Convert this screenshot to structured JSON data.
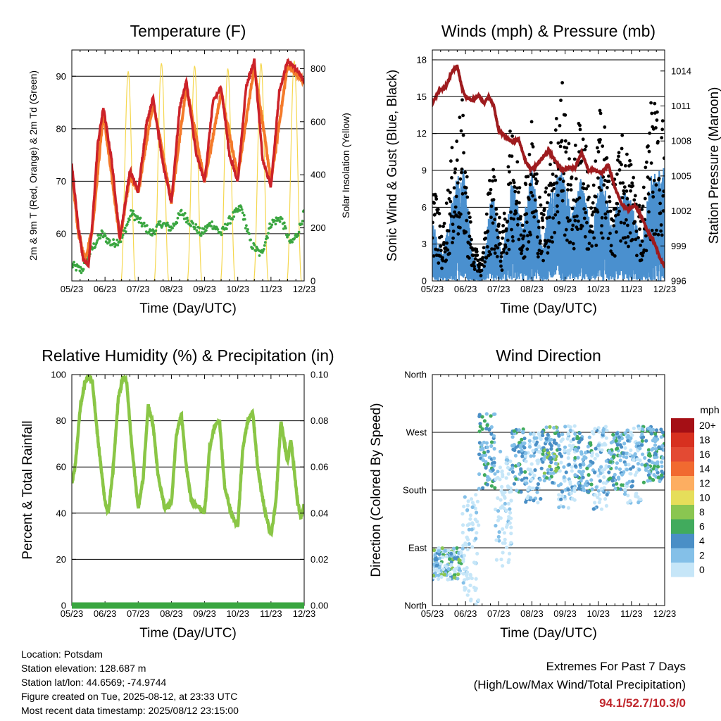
{
  "x_tick_labels": [
    "05/23",
    "06/23",
    "07/23",
    "08/23",
    "09/23",
    "10/23",
    "11/23",
    "12/23"
  ],
  "charts": {
    "temperature": {
      "title": "Temperature (F)",
      "xlabel": "Time (Day/UTC)",
      "ylabel_left": "2m & 9m T (Red, Orange) & 2m Td (Green)",
      "ylabel_right": "Solar Insolation (Yellow)",
      "y_ticks_left": [
        "60",
        "70",
        "80",
        "90"
      ],
      "y_ticks_right": [
        "0",
        "200",
        "400",
        "600",
        "800"
      ]
    },
    "winds": {
      "title": "Winds (mph) & Pressure (mb)",
      "xlabel": "Time (Day/UTC)",
      "ylabel_left": "Sonic Wind & Gust (Blue, Black)",
      "ylabel_right": "Station Pressure (Maroon)",
      "y_ticks_left": [
        "0",
        "3",
        "6",
        "9",
        "12",
        "15",
        "18"
      ],
      "y_ticks_right": [
        "996",
        "999",
        "1002",
        "1005",
        "1008",
        "1011",
        "1014"
      ]
    },
    "humidity": {
      "title": "Relative Humidity (%) & Precipitation (in)",
      "xlabel": "Time (Day/UTC)",
      "ylabel_left": "Percent & Total Rainfall",
      "y_ticks_left": [
        "0",
        "20",
        "40",
        "60",
        "80",
        "100"
      ],
      "y_ticks_right": [
        "0.00",
        "0.02",
        "0.04",
        "0.06",
        "0.08",
        "0.10"
      ]
    },
    "direction": {
      "title": "Wind Direction",
      "xlabel": "Time (Day/UTC)",
      "ylabel_left": "Direction (Colored By Speed)",
      "y_ticks_left": [
        "North",
        "East",
        "South",
        "West",
        "North"
      ],
      "legend_title": "mph",
      "legend_labels": [
        "20+",
        "18",
        "16",
        "14",
        "12",
        "10",
        "8",
        "6",
        "4",
        "2",
        "0"
      ],
      "legend_colors": [
        "#a50f15",
        "#d7301f",
        "#e34a33",
        "#f16a30",
        "#fdae61",
        "#e6de5a",
        "#8ac651",
        "#41ab5d",
        "#4a8fc6",
        "#84c0e8",
        "#c6e6f8"
      ]
    }
  },
  "chart_data": [
    {
      "type": "line",
      "title": "Temperature (F)",
      "xlabel": "Time (Day/UTC)",
      "ylabel": "2m & 9m T (Red, Orange) & 2m Td (Green)",
      "categories": [
        "05/23",
        "06/23",
        "07/23",
        "08/23",
        "09/23",
        "10/23",
        "11/23",
        "12/23"
      ],
      "ylim": [
        51,
        95
      ],
      "y2lim": [
        0,
        870
      ],
      "series": [
        {
          "name": "2m T",
          "color": "#cc2229",
          "x": [
            0,
            0.05,
            0.2,
            0.35,
            0.5,
            0.62,
            0.78,
            0.95,
            1.2,
            1.45,
            1.75,
            2.0,
            2.25,
            2.45,
            2.75,
            3.0,
            3.25,
            3.45,
            3.75,
            4.0,
            4.25,
            4.5,
            4.75,
            5.0,
            5.25,
            5.5,
            5.75,
            6.0,
            6.25,
            6.5,
            6.8,
            7.0
          ],
          "y": [
            73,
            70,
            61,
            55,
            54,
            62,
            77,
            84,
            74,
            59,
            72,
            68,
            81,
            86,
            73,
            66,
            84,
            89,
            75,
            70,
            85,
            88,
            75,
            70,
            88,
            93,
            74,
            69,
            87,
            93,
            91,
            89
          ]
        },
        {
          "name": "9m T",
          "color": "#f47a2a",
          "x": [
            0,
            0.2,
            0.4,
            0.62,
            0.95,
            1.45,
            1.75,
            2.0,
            2.45,
            3.0,
            3.45,
            4.0,
            4.5,
            5.0,
            5.5,
            6.0,
            6.5,
            7.0
          ],
          "y": [
            72,
            60,
            55,
            61,
            83,
            59,
            71,
            68,
            85,
            66,
            88,
            70,
            87,
            71,
            92,
            70,
            92,
            89
          ]
        },
        {
          "name": "2m Td",
          "color": "#3aa640",
          "x": [
            0,
            0.3,
            0.6,
            0.9,
            1.2,
            1.5,
            1.8,
            2.1,
            2.4,
            2.7,
            3.0,
            3.3,
            3.6,
            3.9,
            4.2,
            4.5,
            4.8,
            5.1,
            5.4,
            5.7,
            6.0,
            6.3,
            6.6,
            6.8,
            7.0
          ],
          "y": [
            54,
            53,
            57,
            60,
            58,
            59,
            64,
            62,
            60,
            62,
            61,
            64,
            62,
            60,
            62,
            60,
            63,
            65,
            58,
            56,
            62,
            63,
            58,
            60,
            64
          ]
        },
        {
          "name": "Solar Insolation",
          "color": "#f4d33c",
          "peaks_x": [
            1.7,
            2.7,
            3.7,
            4.7,
            5.7,
            6.7
          ],
          "peaks_y": [
            790,
            820,
            810,
            800,
            820,
            830
          ]
        }
      ]
    },
    {
      "type": "line",
      "title": "Winds (mph) & Pressure (mb)",
      "xlabel": "Time (Day/UTC)",
      "ylabel": "Sonic Wind & Gust (Blue, Black)",
      "categories": [
        "05/23",
        "06/23",
        "07/23",
        "08/23",
        "09/23",
        "10/23",
        "11/23",
        "12/23"
      ],
      "ylim": [
        0,
        18.8
      ],
      "y2lim": [
        996,
        1015.8
      ],
      "series": [
        {
          "name": "Station Pressure",
          "color": "#9e1b1e",
          "x": [
            0,
            0.2,
            0.4,
            0.6,
            0.75,
            0.9,
            1.0,
            1.2,
            1.4,
            1.55,
            1.7,
            1.85,
            2.0,
            2.2,
            2.4,
            2.6,
            2.8,
            2.95,
            3.1,
            3.3,
            3.5,
            3.7,
            3.9,
            4.1,
            4.3,
            4.5,
            4.7,
            4.9,
            5.1,
            5.3,
            5.5,
            5.7,
            5.9,
            6.1,
            6.3,
            6.5,
            6.7,
            6.85,
            7.0
          ],
          "y": [
            1011.2,
            1012.3,
            1012.6,
            1014,
            1014.4,
            1012.5,
            1011.8,
            1011.5,
            1011.9,
            1011.2,
            1011.8,
            1011,
            1008.9,
            1008.4,
            1007.9,
            1008.2,
            1006.3,
            1005.6,
            1005.8,
            1006.5,
            1007.2,
            1006.3,
            1005.5,
            1005.7,
            1005.7,
            1007,
            1005.5,
            1005.5,
            1005.2,
            1006,
            1004,
            1002.6,
            1002.1,
            1002.5,
            1001.5,
            1000.2,
            999.2,
            998,
            997.2
          ]
        },
        {
          "name": "Sonic Wind",
          "color": "#4a90cf",
          "peaks_x": [
            0,
            0.3,
            0.6,
            0.9,
            1.2,
            1.5,
            1.8,
            2.1,
            2.4,
            2.7,
            3.0,
            3.3,
            3.6,
            3.9,
            4.2,
            4.5,
            4.8,
            5.1,
            5.4,
            5.7,
            6.0,
            6.3,
            6.6,
            6.9
          ],
          "peaks_y": [
            4.5,
            2,
            6,
            10,
            2,
            0.5,
            7,
            1.5,
            8,
            4,
            8.5,
            3,
            7,
            8.5,
            5,
            8,
            3.5,
            8.5,
            4,
            7,
            6,
            3,
            8,
            8.5
          ]
        },
        {
          "name": "Gust",
          "color": "#000000",
          "peaks_x": [
            0,
            0.3,
            0.6,
            0.9,
            1.2,
            1.5,
            1.8,
            2.1,
            2.4,
            2.7,
            3.0,
            3.3,
            3.6,
            3.9,
            4.2,
            4.5,
            4.8,
            5.1,
            5.4,
            5.7,
            6.0,
            6.3,
            6.6,
            6.9
          ],
          "peaks_y": [
            8.5,
            3.5,
            10,
            13.5,
            3,
            1.5,
            10,
            3,
            13,
            6,
            12.5,
            5,
            11,
            16,
            8,
            14,
            5.5,
            14.5,
            6.5,
            11,
            9,
            5.5,
            14,
            12.5
          ]
        }
      ]
    },
    {
      "type": "line",
      "title": "Relative Humidity (%) & Precipitation (in)",
      "xlabel": "Time (Day/UTC)",
      "ylabel": "Percent & Total Rainfall",
      "categories": [
        "05/23",
        "06/23",
        "07/23",
        "08/23",
        "09/23",
        "10/23",
        "11/23",
        "12/23"
      ],
      "ylim": [
        0,
        100
      ],
      "y2lim": [
        0,
        0.1
      ],
      "series": [
        {
          "name": "Relative Humidity",
          "color": "#8ac646",
          "x": [
            0,
            0.1,
            0.25,
            0.4,
            0.5,
            0.62,
            0.8,
            1.0,
            1.1,
            1.25,
            1.4,
            1.55,
            1.65,
            1.8,
            2.0,
            2.15,
            2.3,
            2.45,
            2.6,
            2.8,
            3.0,
            3.15,
            3.3,
            3.45,
            3.6,
            3.8,
            4.0,
            4.15,
            4.3,
            4.45,
            4.6,
            4.8,
            5.0,
            5.15,
            5.3,
            5.45,
            5.6,
            5.8,
            6.0,
            6.15,
            6.3,
            6.5,
            6.6,
            6.8,
            6.9,
            7.0
          ],
          "y": [
            53,
            60,
            85,
            97,
            99,
            97,
            70,
            45,
            40,
            60,
            90,
            99,
            97,
            70,
            42,
            55,
            87,
            78,
            56,
            42,
            44,
            74,
            83,
            60,
            45,
            43,
            40,
            68,
            78,
            80,
            52,
            40,
            34,
            68,
            80,
            84,
            60,
            42,
            30,
            45,
            80,
            62,
            72,
            45,
            38,
            44
          ]
        },
        {
          "name": "Total Rainfall",
          "color": "#3aa640",
          "x": [
            0,
            7.0
          ],
          "y": [
            0,
            0
          ]
        }
      ]
    },
    {
      "type": "scatter",
      "title": "Wind Direction",
      "xlabel": "Time (Day/UTC)",
      "ylabel": "Direction (Colored By Speed)",
      "categories": [
        "05/23",
        "06/23",
        "07/23",
        "08/23",
        "09/23",
        "10/23",
        "11/23",
        "12/23"
      ],
      "y_categories": [
        "North",
        "East",
        "South",
        "West",
        "North"
      ],
      "ylim": [
        0,
        360
      ],
      "legend_title": "mph",
      "clusters": [
        {
          "x": [
            0.0,
            0.9
          ],
          "dir": [
            40,
            90
          ],
          "speed_range": [
            0,
            10
          ]
        },
        {
          "x": [
            0.9,
            1.4
          ],
          "dir": [
            0,
            180
          ],
          "speed_range": [
            0,
            3
          ]
        },
        {
          "x": [
            1.4,
            1.9
          ],
          "dir": [
            180,
            300
          ],
          "speed_range": [
            2,
            8
          ]
        },
        {
          "x": [
            1.9,
            2.4
          ],
          "dir": [
            60,
            240
          ],
          "speed_range": [
            0,
            3
          ]
        },
        {
          "x": [
            2.4,
            2.8
          ],
          "dir": [
            175,
            275
          ],
          "speed_range": [
            2,
            8
          ]
        },
        {
          "x": [
            2.8,
            3.3
          ],
          "dir": [
            160,
            270
          ],
          "speed_range": [
            0,
            5
          ]
        },
        {
          "x": [
            3.3,
            3.8
          ],
          "dir": [
            190,
            280
          ],
          "speed_range": [
            2,
            9
          ]
        },
        {
          "x": [
            3.8,
            4.3
          ],
          "dir": [
            150,
            280
          ],
          "speed_range": [
            0,
            5
          ]
        },
        {
          "x": [
            4.3,
            4.8
          ],
          "dir": [
            175,
            270
          ],
          "speed_range": [
            2,
            8
          ]
        },
        {
          "x": [
            4.8,
            5.3
          ],
          "dir": [
            150,
            280
          ],
          "speed_range": [
            0,
            5
          ]
        },
        {
          "x": [
            5.3,
            5.8
          ],
          "dir": [
            180,
            270
          ],
          "speed_range": [
            2,
            8
          ]
        },
        {
          "x": [
            5.8,
            6.3
          ],
          "dir": [
            160,
            280
          ],
          "speed_range": [
            0,
            5
          ]
        },
        {
          "x": [
            6.3,
            7.0
          ],
          "dir": [
            190,
            280
          ],
          "speed_range": [
            2,
            8
          ]
        }
      ]
    }
  ],
  "station_info": {
    "location": "Location: Potsdam",
    "elevation": "Station elevation: 128.687 m",
    "latlon": "Station lat/lon: 44.6569; -74.9744",
    "created": "Figure created on Tue, 2025-08-12, at 23:33 UTC",
    "timestamp": "Most recent data timestamp: 2025/08/12 23:15:00"
  },
  "extremes": {
    "heading": "Extremes For Past 7 Days",
    "subheading": "(High/Low/Max Wind/Total Precipitation)",
    "values": "94.1/52.7/10.3/0"
  }
}
